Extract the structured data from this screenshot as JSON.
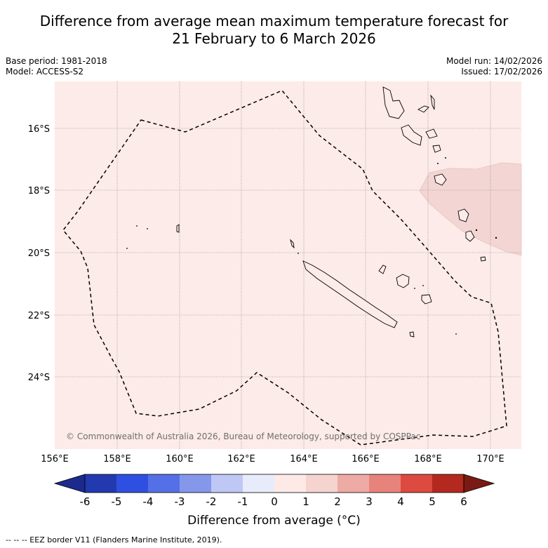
{
  "title_line1": "Difference from average mean maximum temperature forecast for",
  "title_line2": "21 February to 6 March 2026",
  "base_period": "Base period: 1981-2018",
  "model": "Model: ACCESS-S2",
  "model_run": "Model run: 14/02/2026",
  "issued": "Issued: 17/02/2026",
  "copyright": "© Commonwealth of Australia 2026, Bureau of Meteorology, supported by COSPPac",
  "footer_legend": "-- -- -- EEZ border V11 (Flanders Marine Institute, 2019).",
  "lon_labels": [
    "156°E",
    "158°E",
    "160°E",
    "162°E",
    "164°E",
    "166°E",
    "168°E",
    "170°E"
  ],
  "lat_labels": [
    "16°S",
    "18°S",
    "20°S",
    "22°S",
    "24°S"
  ],
  "colorbar": {
    "title": "Difference from average (°C)",
    "ticks": [
      "-6",
      "-5",
      "-4",
      "-3",
      "-2",
      "-1",
      "0",
      "1",
      "2",
      "3",
      "4",
      "5",
      "6"
    ],
    "colors": [
      "#1b2a8c",
      "#2339b0",
      "#2f4fe0",
      "#5570e6",
      "#8597ea",
      "#bfc7f4",
      "#e8ebfa",
      "#fdeae6",
      "#f5d3cf",
      "#eeaaa4",
      "#e7837b",
      "#dc4a40",
      "#b3281f",
      "#7a1a14"
    ]
  },
  "map": {
    "background_anomaly_color": "#fcebe8",
    "warm_patch_color": "#f3d6d3"
  }
}
